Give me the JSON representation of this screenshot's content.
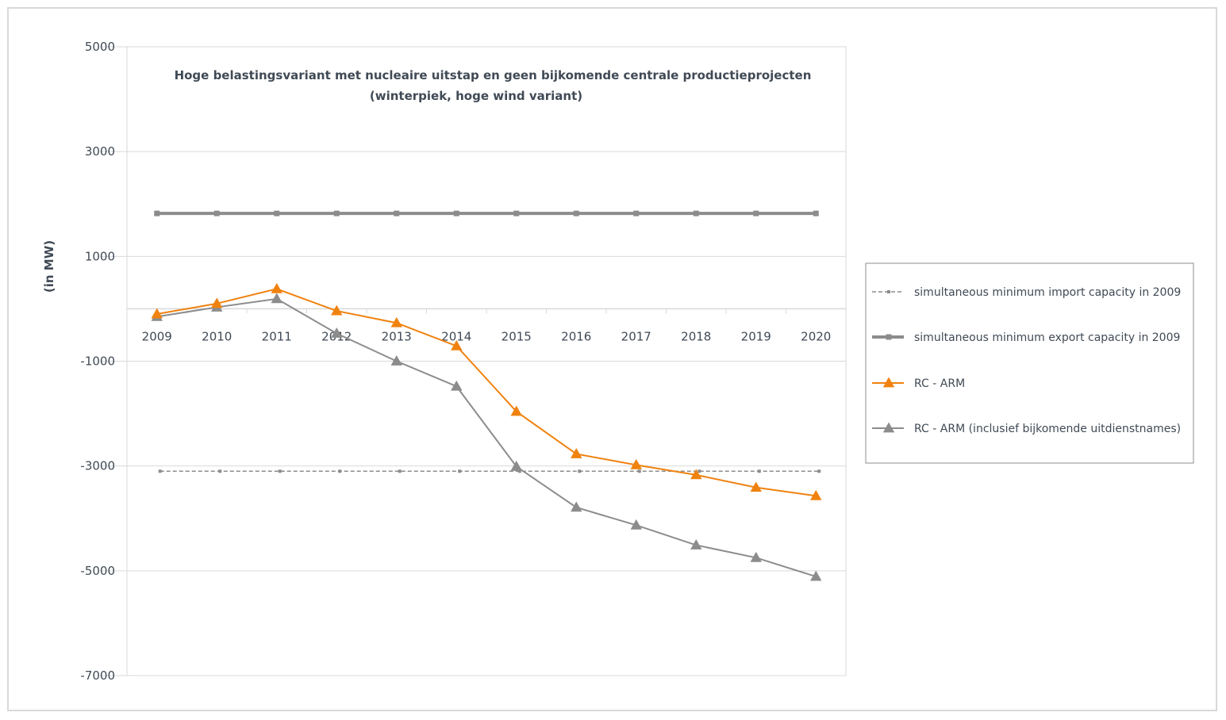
{
  "chart_data": {
    "type": "line",
    "title": [
      "Hoge belastingsvariant met nucleaire uitstap en geen bijkomende centrale productieprojecten",
      "(winterpiek, hoge wind variant)"
    ],
    "ylabel": "(in MW)",
    "xlabel": "",
    "ylim": [
      -7000,
      5000
    ],
    "yticks": [
      5000,
      3000,
      1000,
      -1000,
      -3000,
      -5000,
      -7000
    ],
    "categories": [
      "2009",
      "2010",
      "2011",
      "2012",
      "2013",
      "2014",
      "2015",
      "2016",
      "2017",
      "2018",
      "2019",
      "2020"
    ],
    "legend_position": "right",
    "series": [
      {
        "name": "simultaneous minimum import capacity in 2009",
        "color": "#8c8c8c",
        "style": "dashed",
        "marker": "square",
        "values": [
          -3100,
          -3100,
          -3100,
          -3100,
          -3100,
          -3100,
          -3100,
          -3100,
          -3100,
          -3100,
          -3100,
          -3100
        ]
      },
      {
        "name": "simultaneous minimum export capacity in 2009",
        "color": "#8c8c8c",
        "style": "thick",
        "marker": "square",
        "values": [
          1820,
          1820,
          1820,
          1820,
          1820,
          1820,
          1820,
          1820,
          1820,
          1820,
          1820,
          1820
        ]
      },
      {
        "name": "RC -  ARM",
        "color": "#f0820f",
        "style": "solid",
        "marker": "triangle",
        "values": [
          -100,
          100,
          380,
          -40,
          -270,
          -710,
          -1960,
          -2770,
          -2980,
          -3170,
          -3410,
          -3570
        ]
      },
      {
        "name": "RC - ARM  (inclusief bijkomende uitdienstnames)",
        "color": "#8c8c8c",
        "style": "solid",
        "marker": "triangle",
        "values": [
          -150,
          30,
          190,
          -470,
          -1000,
          -1480,
          -3010,
          -3790,
          -4130,
          -4510,
          -4750,
          -5110
        ]
      }
    ]
  }
}
